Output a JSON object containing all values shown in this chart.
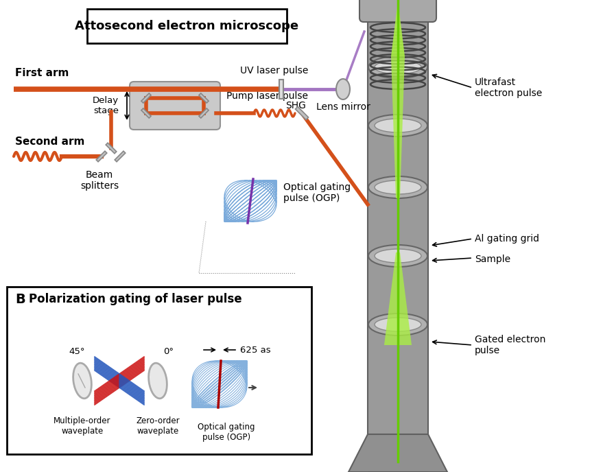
{
  "title": "Attosecond electron microscope",
  "bg_color": "#ffffff",
  "first_arm_label": "First arm",
  "second_arm_label": "Second arm",
  "shg_label": "SHG",
  "uv_label": "UV laser pulse",
  "lens_mirror_label": "Lens mirror",
  "ultrafast_label": "Ultrafast\nelectron pulse",
  "pump_label": "Pump laser pulse",
  "delay_label": "Delay\nstage",
  "beam_splitters_label": "Beam\nsplitters",
  "ogp_upper_label": "Optical gating\npulse (OGP)",
  "al_gating_label": "Al gating grid",
  "sample_label": "Sample",
  "gated_label": "Gated electron\npulse",
  "panel_b_title": "Polarization gating of laser pulse",
  "panel_b_label": "B",
  "as625_label": "625 as",
  "deg45_label": "45°",
  "deg0_label": "0°",
  "multi_wave_label": "Multiple-order\nwaveplate",
  "zero_wave_label": "Zero-order\nwaveplate",
  "ogp_b_label": "Optical gating\npulse (OGP)",
  "orange": "#D4501A",
  "orange_wave": "#D4501A",
  "purple": "#9966BB",
  "green_beam": "#88DD22",
  "green_bright": "#AAEE44",
  "col_gray": "#9A9A9A",
  "col_dark": "#606060",
  "col_light": "#CCCCCC",
  "col_ring": "#B8B8B8",
  "col_ring_inner": "#E0E0E0",
  "blue_ogp": "#4488CC",
  "red_wave": "#CC1111",
  "blue_wave": "#2255BB"
}
